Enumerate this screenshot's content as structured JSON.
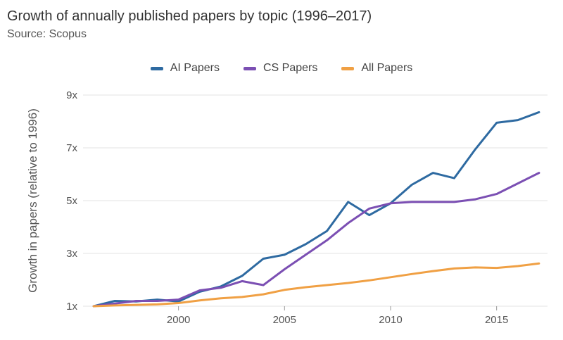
{
  "chart_data": {
    "type": "line",
    "title": "Growth of annually published papers by topic (1996–2017)",
    "subtitle": "Source: Scopus",
    "ylabel": "Growth in papers (relative to 1996)",
    "xlabel": "",
    "x": [
      1996,
      1997,
      1998,
      1999,
      2000,
      2001,
      2002,
      2003,
      2004,
      2005,
      2006,
      2007,
      2008,
      2009,
      2010,
      2011,
      2012,
      2013,
      2014,
      2015,
      2016,
      2017
    ],
    "x_ticks": [
      2000,
      2005,
      2010,
      2015
    ],
    "x_tick_labels": [
      "2000",
      "2005",
      "2010",
      "2015"
    ],
    "xlim": [
      1995.5,
      2017.4
    ],
    "ylim": [
      1,
      9
    ],
    "y_ticks": [
      1,
      3,
      5,
      7,
      9
    ],
    "y_tick_labels": [
      "1x",
      "3x",
      "5x",
      "7x",
      "9x"
    ],
    "grid": true,
    "legend_position": "top-center",
    "series": [
      {
        "name": "AI Papers",
        "color": "#2e6aa1",
        "values": [
          1.0,
          1.2,
          1.18,
          1.25,
          1.18,
          1.55,
          1.75,
          2.15,
          2.8,
          2.95,
          3.35,
          3.85,
          4.95,
          4.45,
          4.9,
          5.6,
          6.05,
          5.85,
          6.95,
          7.95,
          8.05,
          8.35
        ]
      },
      {
        "name": "CS Papers",
        "color": "#7b4fb3",
        "values": [
          1.0,
          1.1,
          1.2,
          1.2,
          1.25,
          1.6,
          1.7,
          1.95,
          1.8,
          2.4,
          2.95,
          3.5,
          4.15,
          4.7,
          4.9,
          4.95,
          4.95,
          4.95,
          5.05,
          5.25,
          5.65,
          6.05
        ]
      },
      {
        "name": "All Papers",
        "color": "#f0a044",
        "values": [
          1.0,
          1.03,
          1.05,
          1.07,
          1.12,
          1.22,
          1.3,
          1.35,
          1.45,
          1.62,
          1.72,
          1.8,
          1.88,
          1.98,
          2.1,
          2.22,
          2.33,
          2.43,
          2.47,
          2.45,
          2.52,
          2.62
        ]
      }
    ]
  }
}
